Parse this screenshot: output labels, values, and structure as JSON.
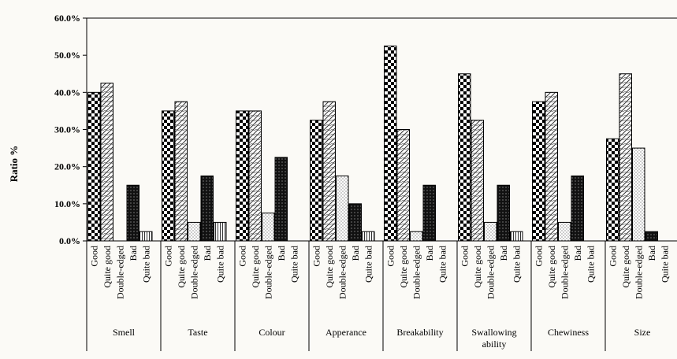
{
  "chart_data": {
    "type": "bar",
    "ylabel": "Ratio  %",
    "ylim": [
      0,
      60
    ],
    "y_ticks": [
      "0.0%",
      "10.0%",
      "20.0%",
      "30.0%",
      "40.0%",
      "50.0%",
      "60.0%"
    ],
    "responses": [
      "Good",
      "Quite good",
      "Double-edged",
      "Bad",
      "Quite bad"
    ],
    "grid": false,
    "groups": [
      {
        "name": "Smell",
        "values": [
          40.0,
          42.5,
          0.0,
          15.0,
          2.5
        ]
      },
      {
        "name": "Taste",
        "values": [
          35.0,
          37.5,
          5.0,
          17.5,
          5.0
        ]
      },
      {
        "name": "Colour",
        "values": [
          35.0,
          35.0,
          7.5,
          22.5,
          0.0
        ]
      },
      {
        "name": "Apperance",
        "values": [
          32.5,
          37.5,
          17.5,
          10.0,
          2.5
        ]
      },
      {
        "name": "Breakability",
        "values": [
          52.5,
          30.0,
          2.5,
          15.0,
          0.0
        ]
      },
      {
        "name": "Swallowing ability",
        "values": [
          45.0,
          32.5,
          5.0,
          15.0,
          2.5
        ]
      },
      {
        "name": "Chewiness",
        "values": [
          37.5,
          40.0,
          5.0,
          17.5,
          0.0
        ]
      },
      {
        "name": "Size",
        "values": [
          27.5,
          45.0,
          25.0,
          2.5,
          0.0
        ]
      }
    ],
    "colors": {
      "axis": "#000000",
      "bad_fill": "#111111",
      "background": "#fbfaf6"
    }
  }
}
